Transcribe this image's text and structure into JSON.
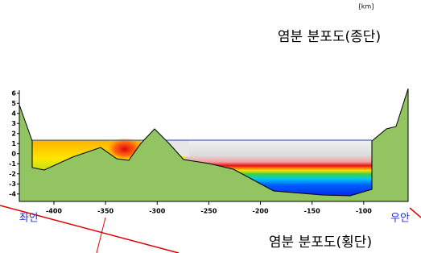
{
  "chart_data": {
    "type": "cross-section",
    "title": "염분 분포도(횡단)",
    "subtitle": "염분 분포도(종단)",
    "unit": "[km]",
    "left_label": "좌안",
    "right_label": "우안",
    "xlim": [
      -433.5,
      -57
    ],
    "ylim": [
      -4.5,
      6.3
    ],
    "xticks": [
      -400,
      -350,
      -300,
      -250,
      -200,
      -150,
      -100
    ],
    "yticks": [
      6,
      5,
      4,
      3,
      2,
      1,
      0,
      -1,
      -2,
      -3,
      -4
    ]
  }
}
